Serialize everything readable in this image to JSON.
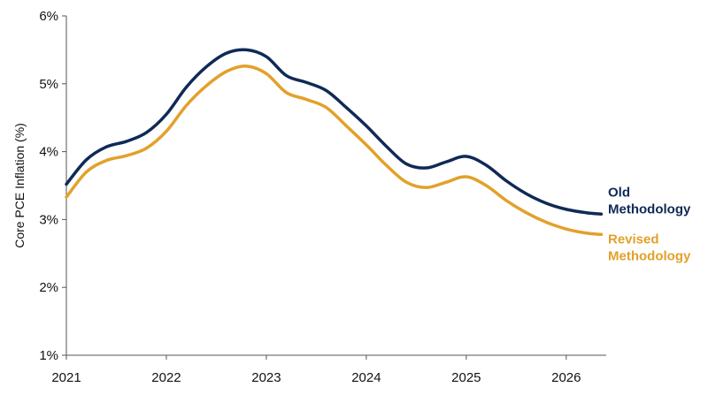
{
  "chart_data": {
    "type": "line",
    "title": "",
    "xlabel": "",
    "ylabel": "Core PCE Inflation (%)",
    "xlim": [
      2021,
      2026.4
    ],
    "ylim": [
      1,
      6
    ],
    "x_ticks": [
      2021,
      2022,
      2023,
      2024,
      2025,
      2026
    ],
    "x_tick_labels": [
      "2021",
      "2022",
      "2023",
      "2024",
      "2025",
      "2026"
    ],
    "y_ticks": [
      1,
      2,
      3,
      4,
      5,
      6
    ],
    "y_tick_labels": [
      "1%",
      "2%",
      "3%",
      "4%",
      "5%",
      "6%"
    ],
    "grid": false,
    "legend": "inline-right",
    "series": [
      {
        "name": "Old Methodology",
        "label_lines": [
          "Old",
          "Methodology"
        ],
        "color": "#0f2a56",
        "x": [
          2021,
          2021.2,
          2021.4,
          2021.6,
          2021.8,
          2022.0,
          2022.2,
          2022.4,
          2022.6,
          2022.8,
          2023.0,
          2023.2,
          2023.4,
          2023.6,
          2023.8,
          2024.0,
          2024.2,
          2024.4,
          2024.6,
          2024.8,
          2025.0,
          2025.2,
          2025.4,
          2025.6,
          2025.8,
          2026.0,
          2026.2,
          2026.35
        ],
        "values": [
          3.52,
          3.88,
          4.07,
          4.15,
          4.28,
          4.55,
          4.95,
          5.25,
          5.45,
          5.5,
          5.4,
          5.12,
          5.02,
          4.9,
          4.65,
          4.38,
          4.08,
          3.82,
          3.76,
          3.85,
          3.93,
          3.8,
          3.57,
          3.38,
          3.24,
          3.15,
          3.1,
          3.08
        ]
      },
      {
        "name": "Revised Methodology",
        "label_lines": [
          "Revised",
          "Methodology"
        ],
        "color": "#e2a12a",
        "x": [
          2021,
          2021.2,
          2021.4,
          2021.6,
          2021.8,
          2022.0,
          2022.2,
          2022.4,
          2022.6,
          2022.8,
          2023.0,
          2023.2,
          2023.4,
          2023.6,
          2023.8,
          2024.0,
          2024.2,
          2024.4,
          2024.6,
          2024.8,
          2025.0,
          2025.2,
          2025.4,
          2025.6,
          2025.8,
          2026.0,
          2026.2,
          2026.35
        ],
        "values": [
          3.33,
          3.7,
          3.87,
          3.94,
          4.05,
          4.3,
          4.68,
          4.97,
          5.18,
          5.26,
          5.15,
          4.87,
          4.77,
          4.65,
          4.38,
          4.1,
          3.8,
          3.55,
          3.47,
          3.55,
          3.63,
          3.5,
          3.28,
          3.1,
          2.96,
          2.86,
          2.8,
          2.78
        ]
      }
    ]
  }
}
